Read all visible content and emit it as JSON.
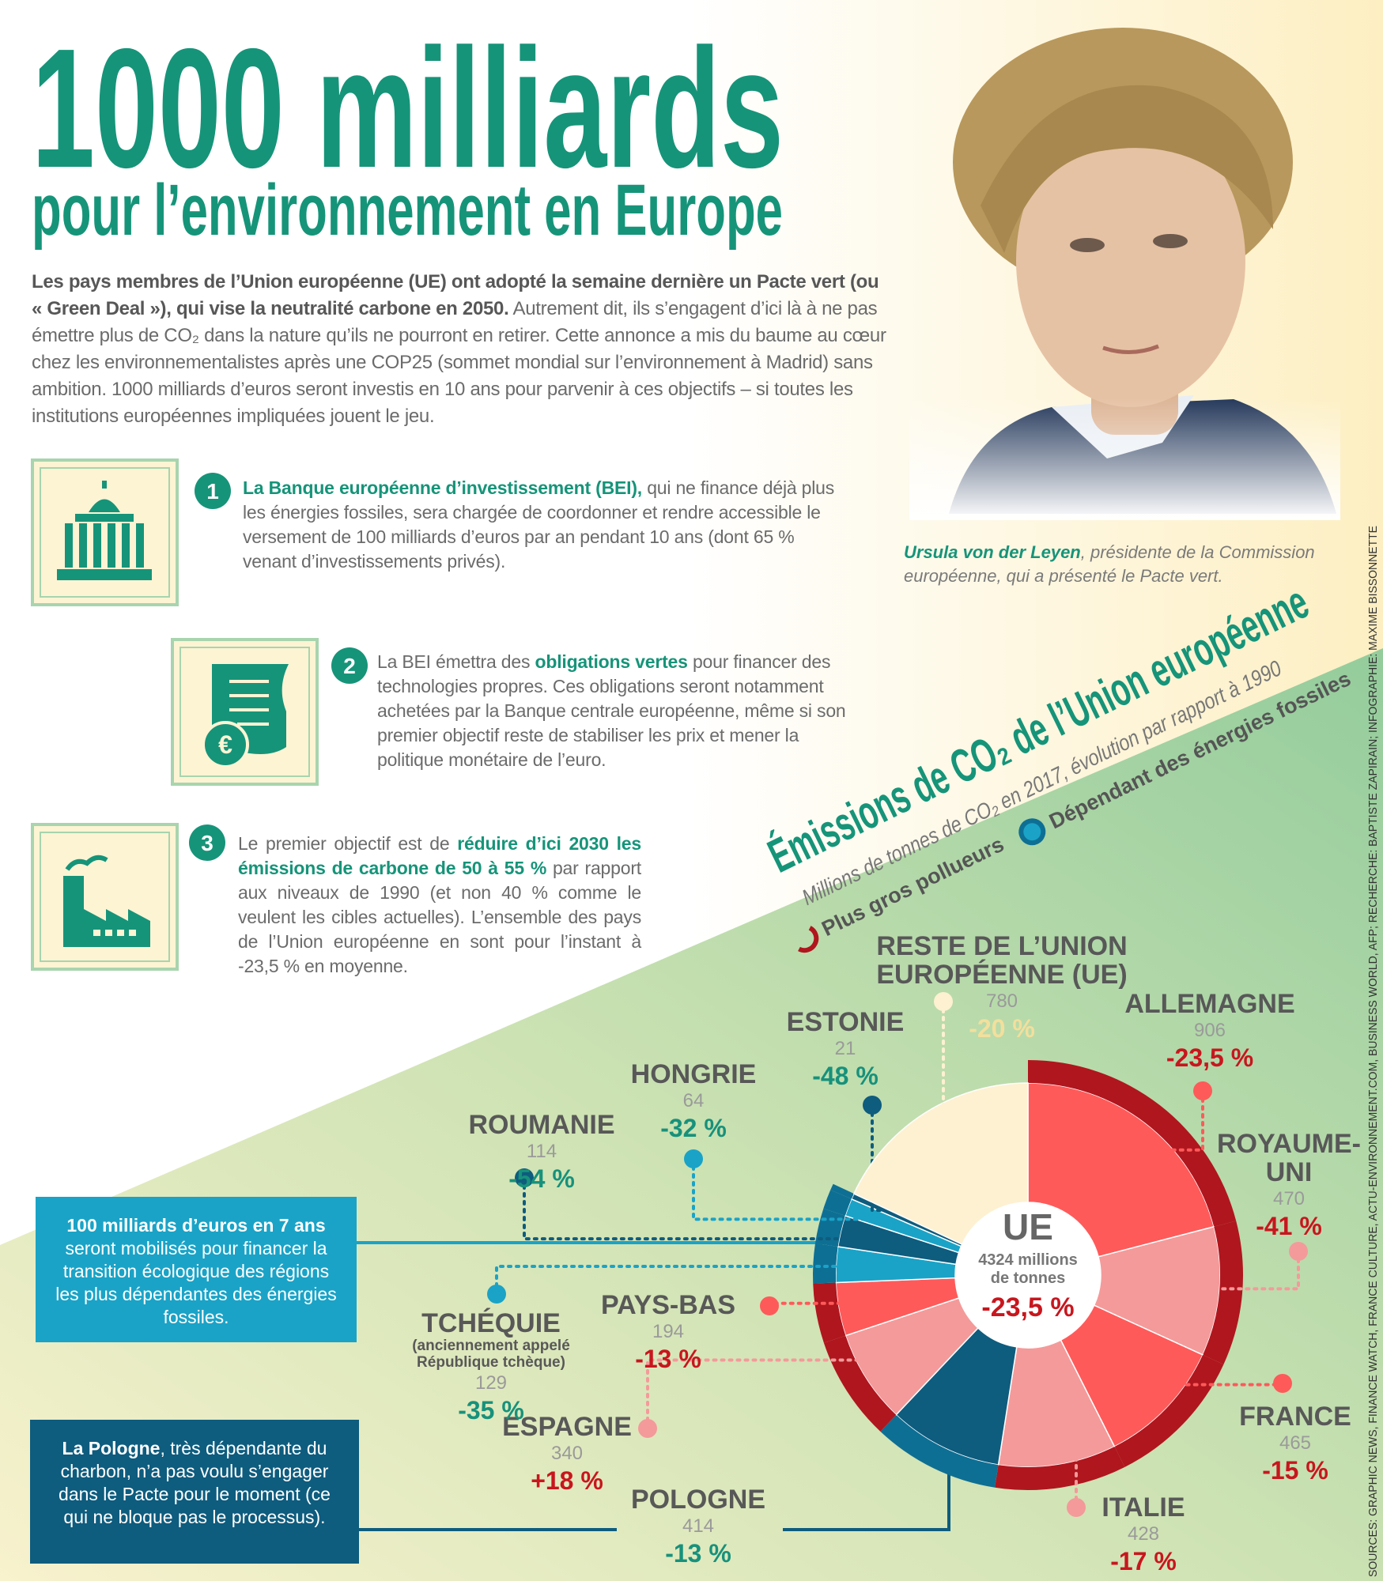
{
  "header": {
    "title": "1000 milliards",
    "subtitle": "pour l’environnement en Europe"
  },
  "intro": {
    "lead": "Les pays membres de l’Union européenne (UE) ont adopté la semaine dernière un Pacte vert (ou « Green Deal »), qui vise la neutralité carbone en 2050.",
    "body": "Autrement dit, ils s’engagent d’ici là à ne pas émettre plus de CO₂ dans la nature qu’ils ne pourront en retirer. Cette annonce a mis du baume au cœur chez les environnementalistes après une COP25 (sommet mondial sur l’environnement à Madrid) sans ambition. 1000 milliards d’euros seront investis en 10 ans pour parvenir à ces objectifs – si toutes les institutions européennes impliquées jouent le jeu."
  },
  "steps": [
    {
      "number": 1,
      "highlight": "La Banque européenne d’investissement (BEI),",
      "after": "qui ne finance déjà plus les énergies fossiles, sera chargée de coordonner et rendre accessible le versement de 100 milliards d’euros par an pendant 10 ans (dont 65 % venant d’investissements privés)."
    },
    {
      "number": 2,
      "before": "La BEI émettra des",
      "highlight": "obligations vertes",
      "after": "pour financer des technologies propres. Ces obligations seront notamment achetées par la Banque centrale européenne, même si son premier objectif reste de stabiliser les prix et mener la politique monétaire de l’euro."
    },
    {
      "number": 3,
      "before": "Le premier objectif est de",
      "highlight": "réduire d’ici 2030 les émissions de carbone de 50 à 55 %",
      "after": "par rapport aux niveaux de 1990 (et non 40 % comme le veulent les cibles actuelles). L’ensemble des pays de l’Union européenne en sont pour l’instant à -23,5 % en moyenne."
    }
  ],
  "portrait_caption": {
    "name": "Ursula von der Leyen",
    "text": ", présidente de la Commission européenne, qui a présenté le Pacte vert."
  },
  "chart_data": {
    "type": "pie",
    "title": "Émissions de CO₂ de l’Union européenne",
    "subtitle": "Millions de tonnes de CO₂ en 2017, évolution par rapport à 1990",
    "legend": [
      {
        "name": "Plus gros pollueurs",
        "color": "#b0161e"
      },
      {
        "name": "Dépendant des énergies fossiles",
        "color": "#0e6f94"
      }
    ],
    "categories": [
      "ALLEMAGNE",
      "ROYAUME-UNI",
      "FRANCE",
      "ITALIE",
      "POLOGNE",
      "ESPAGNE",
      "PAYS-BAS",
      "TCHÉQUIE",
      "ROUMANIE",
      "HONGRIE",
      "ESTONIE",
      "RESTE DE L’UNION EUROPÉENNE (UE)"
    ],
    "values": [
      906,
      470,
      465,
      428,
      414,
      340,
      194,
      129,
      114,
      64,
      21,
      780
    ],
    "changes": [
      "-23,5 %",
      "-41 %",
      "-15 %",
      "-17 %",
      "-13 %",
      "+18 %",
      "-13 %",
      "-35 %",
      "-54 %",
      "-32 %",
      "-48 %",
      "-20 %"
    ],
    "colors": [
      "#ff5a5a",
      "#f49a9a",
      "#ff5a5a",
      "#f49a9a",
      "#0e5c7e",
      "#f49a9a",
      "#ff5a5a",
      "#1aa3c7",
      "#0e5c7e",
      "#1aa3c7",
      "#0e5c7e",
      "#fdf1d2"
    ],
    "groups": [
      0,
      0,
      0,
      0,
      1,
      0,
      0,
      1,
      1,
      1,
      1,
      null
    ],
    "czech_note": "(anciennement appelé République tchèque)",
    "center_label": "UE",
    "total_lines": [
      "4324 millions",
      "de tonnes"
    ],
    "total_change": "-23,5 %"
  },
  "callouts": [
    {
      "lead": "100 milliards d’euros en 7 ans",
      "text": "seront mobilisés pour financer la transition écologique des régions les plus dépendantes des énergies fossiles."
    },
    {
      "lead": "La Pologne",
      "text": ", très dépendante du charbon, n’a pas voulu s’engager dans le Pacte pour le moment (ce qui ne bloque pas le processus)."
    }
  ],
  "credits": "SOURCES: GRAPHIC NEWS, FINANCE WATCH, FRANCE CULTURE, ACTU-ENVIRONNEMENT.COM, BUSINESS WORLD, AFP; RECHERCHE: BAPTISTE ZAPIRAIN; INFOGRAPHIE: MAXIME BISSONNETTE"
}
